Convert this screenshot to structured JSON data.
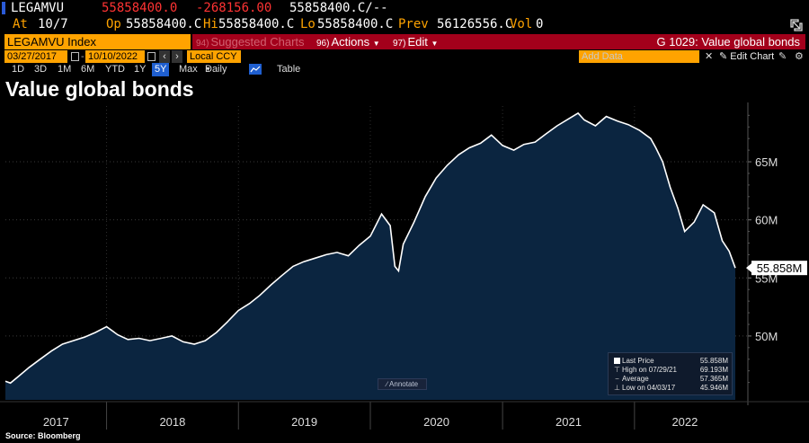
{
  "header": {
    "ticker": "LEGAMVU",
    "last": "55858400.0",
    "change": "-268156.00",
    "bidask": "55858400.C/--",
    "at_label": "At",
    "at_value": "10/7",
    "op_label": "Op",
    "op_value": "55858400.C",
    "hi_label": "Hi",
    "hi_value": "55858400.C",
    "lo_label": "Lo",
    "lo_value": "55858400.C",
    "prev_label": "Prev",
    "prev_value": "56126556.C",
    "vol_label": "Vol",
    "vol_value": "0"
  },
  "toolbar": {
    "security": "LEGAMVU Index",
    "suggested_num": "94)",
    "suggested_label": "Suggested Charts",
    "actions_num": "96)",
    "actions_label": "Actions",
    "edit_num": "97)",
    "edit_label": "Edit",
    "function_title": "G 1029: Value global bonds",
    "start_date": "03/27/2017",
    "end_date": "10/10/2022",
    "currency": "Local CCY",
    "add_data_placeholder": "Add Data",
    "edit_chart_label": "Edit Chart",
    "periods": [
      "1D",
      "3D",
      "1M",
      "6M",
      "YTD",
      "1Y",
      "5Y",
      "Max"
    ],
    "selected_period": "5Y",
    "frequency": "Daily",
    "table_label": "Table"
  },
  "colors": {
    "amber": "#ffa300",
    "red_bar": "#a3001b",
    "fill": "#0b2540",
    "line": "#ffffff",
    "negative": "#ff3333"
  },
  "chart_data": {
    "type": "area",
    "title": "Value global bonds",
    "source": "Source: Bloomberg",
    "y_unit": "M",
    "ylim": [
      44.5,
      69.8
    ],
    "y_ticks": [
      50,
      55,
      60,
      65
    ],
    "y_tick_labels": [
      "50M",
      "55M",
      "60M",
      "65M"
    ],
    "x_years": [
      "2017",
      "2018",
      "2019",
      "2020",
      "2021",
      "2022"
    ],
    "last_price_label": "55.858M",
    "legend": [
      {
        "label": "Last Price",
        "value": "55.858M"
      },
      {
        "label": "High on 07/29/21",
        "value": "69.193M"
      },
      {
        "label": "Average",
        "value": "57.365M"
      },
      {
        "label": "Low on 04/03/17",
        "value": "45.946M"
      }
    ],
    "annotate_label": "Annotate",
    "x": [
      "2017-03-27",
      "2017-04-10",
      "2017-05-01",
      "2017-06-01",
      "2017-07-01",
      "2017-08-01",
      "2017-09-01",
      "2017-10-01",
      "2017-11-01",
      "2017-12-01",
      "2018-01-01",
      "2018-02-01",
      "2018-03-01",
      "2018-04-01",
      "2018-05-01",
      "2018-06-01",
      "2018-07-01",
      "2018-08-01",
      "2018-09-01",
      "2018-10-01",
      "2018-11-01",
      "2018-12-01",
      "2019-01-01",
      "2019-02-01",
      "2019-03-01",
      "2019-04-01",
      "2019-05-01",
      "2019-06-01",
      "2019-07-01",
      "2019-08-01",
      "2019-09-01",
      "2019-10-01",
      "2019-11-01",
      "2019-12-01",
      "2020-01-01",
      "2020-02-01",
      "2020-02-25",
      "2020-03-09",
      "2020-03-19",
      "2020-04-01",
      "2020-05-01",
      "2020-06-01",
      "2020-07-01",
      "2020-08-01",
      "2020-09-01",
      "2020-10-01",
      "2020-11-01",
      "2020-12-01",
      "2021-01-01",
      "2021-02-01",
      "2021-03-01",
      "2021-04-01",
      "2021-05-01",
      "2021-06-01",
      "2021-07-29",
      "2021-08-15",
      "2021-09-15",
      "2021-10-15",
      "2021-11-15",
      "2021-12-15",
      "2022-01-15",
      "2022-02-15",
      "2022-03-01",
      "2022-03-20",
      "2022-04-10",
      "2022-05-01",
      "2022-05-20",
      "2022-06-15",
      "2022-07-10",
      "2022-08-10",
      "2022-09-01",
      "2022-09-20",
      "2022-10-07"
    ],
    "values": [
      46.1,
      45.95,
      46.5,
      47.3,
      48.0,
      48.7,
      49.3,
      49.6,
      49.9,
      50.3,
      50.8,
      50.1,
      49.7,
      49.8,
      49.6,
      49.8,
      50.0,
      49.5,
      49.3,
      49.6,
      50.3,
      51.2,
      52.2,
      52.8,
      53.5,
      54.4,
      55.2,
      56.0,
      56.4,
      56.7,
      57.0,
      57.2,
      56.9,
      57.8,
      58.6,
      60.5,
      59.5,
      56.0,
      55.6,
      57.9,
      59.8,
      62.0,
      63.6,
      64.7,
      65.6,
      66.2,
      66.6,
      67.3,
      66.4,
      66.0,
      66.5,
      66.7,
      67.4,
      68.1,
      69.19,
      68.6,
      68.1,
      68.9,
      68.5,
      68.2,
      67.7,
      67.0,
      66.2,
      65.0,
      62.8,
      61.0,
      59.0,
      59.8,
      61.3,
      60.6,
      58.2,
      57.3,
      55.86
    ]
  },
  "footer_source": "Source: Bloomberg"
}
